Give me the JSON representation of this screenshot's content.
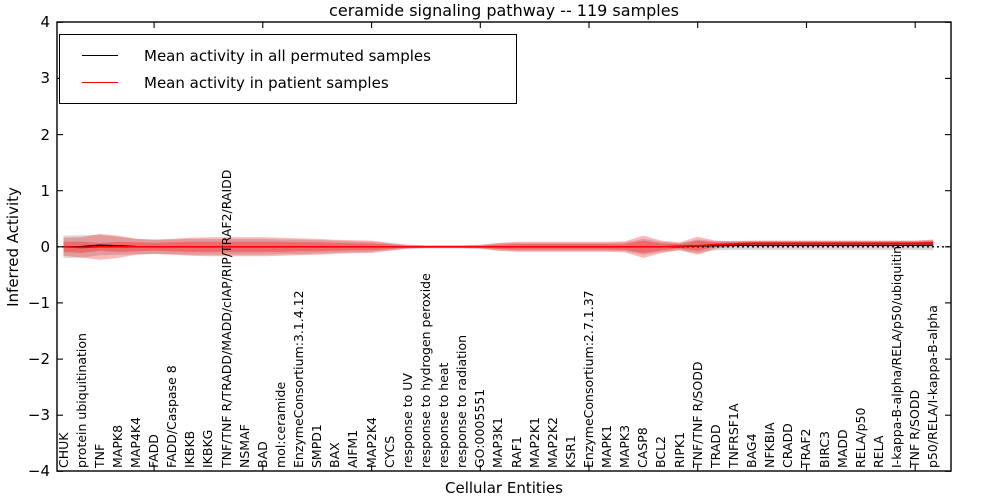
{
  "title": "ceramide signaling pathway -- 119 samples",
  "axes": {
    "ylabel": "Inferred Activity",
    "xlabel": "Cellular Entities",
    "yticks": [
      {
        "v": 4,
        "label": "4"
      },
      {
        "v": 3,
        "label": "3"
      },
      {
        "v": 2,
        "label": "2"
      },
      {
        "v": 1,
        "label": "1"
      },
      {
        "v": 0,
        "label": "0"
      },
      {
        "v": -1,
        "label": "−1"
      },
      {
        "v": -2,
        "label": "−2"
      },
      {
        "v": -3,
        "label": "−3"
      },
      {
        "v": -4,
        "label": "−4"
      }
    ]
  },
  "legend": {
    "items": [
      {
        "label": "Mean activity in all permuted samples",
        "color": "#000000"
      },
      {
        "label": "Mean activity in patient samples",
        "color": "#ff0000"
      }
    ]
  },
  "chart_data": {
    "type": "line",
    "title": "ceramide signaling pathway -- 119 samples",
    "xlabel": "Cellular Entities",
    "ylabel": "Inferred Activity",
    "ylim": [
      -4,
      4
    ],
    "grid": false,
    "legend_position": "upper left",
    "zero_line": true,
    "x_tick_indices": [
      5,
      11,
      17,
      23,
      29,
      35,
      41,
      47
    ],
    "categories": [
      "CHUK",
      "protein ubiquitination",
      "TNF",
      "MAPK8",
      "MAP4K4",
      "FADD",
      "FADD/Caspase 8",
      "IKBKB",
      "IKBKG",
      "TNF/TNF R/TRADD/MADD/cIAP/RIP/TRAF2/RAIDD",
      "NSMAF",
      "BAD",
      "mol:ceramide",
      "EnzymeConsortium:3.1.4.12",
      "SMPD1",
      "BAX",
      "AIFM1",
      "MAP2K4",
      "CYCS",
      "response to UV",
      "response to hydrogen peroxide",
      "response to heat",
      "response to radiation",
      "GO:0005551",
      "MAP3K1",
      "RAF1",
      "MAP2K1",
      "MAP2K2",
      "KSR1",
      "EnzymeConsortium:2.7.1.37",
      "MAPK1",
      "MAPK3",
      "CASP8",
      "BCL2",
      "RIPK1",
      "TNF/TNF R/SODD",
      "TRADD",
      "TNFRSF1A",
      "BAG4",
      "NFKBIA",
      "CRADD",
      "TRAF2",
      "BIRC3",
      "MADD",
      "RELA/p50",
      "RELA",
      "I-kappa-B-alpha/RELA/p50/ubiquitin",
      "TNF R/SODD",
      "p50/RELA/I-kappa-B-alpha"
    ],
    "series": [
      {
        "name": "Mean activity in all permuted samples",
        "color": "#000000",
        "values": [
          0,
          0.005,
          0.03,
          0.02,
          0.005,
          0,
          0,
          0,
          0,
          0,
          0,
          0,
          0,
          0,
          0,
          0,
          0,
          0,
          0,
          0,
          0,
          0,
          0,
          0,
          0,
          0,
          0,
          0,
          0,
          0,
          0,
          0,
          0,
          0,
          0,
          0.01,
          0.02,
          0.025,
          0.025,
          0.025,
          0.025,
          0.025,
          0.025,
          0.025,
          0.025,
          0.025,
          0.025,
          0.025,
          0.03
        ]
      },
      {
        "name": "Mean activity in patient samples",
        "color": "#ff0000",
        "values": [
          0,
          -0.01,
          0,
          0,
          0,
          0,
          0,
          0,
          0,
          0,
          0,
          0,
          0,
          0,
          0,
          0,
          0,
          0,
          0,
          0,
          0,
          0,
          0,
          0,
          0,
          0,
          0,
          0,
          0,
          0,
          0,
          0,
          0,
          0,
          0.01,
          0.02,
          0.04,
          0.05,
          0.06,
          0.06,
          0.06,
          0.06,
          0.06,
          0.06,
          0.06,
          0.06,
          0.06,
          0.06,
          0.07
        ]
      }
    ],
    "bands": [
      {
        "name": "permuted-std-band",
        "color": "#b0b0b0",
        "alpha": 0.5,
        "center_series": 0,
        "halfwidths": [
          0.2,
          0.2,
          0.18,
          0.16,
          0.14,
          0.13,
          0.13,
          0.14,
          0.14,
          0.14,
          0.14,
          0.14,
          0.13,
          0.13,
          0.12,
          0.11,
          0.1,
          0.09,
          0.06,
          0.03,
          0.025,
          0.025,
          0.025,
          0.03,
          0.06,
          0.07,
          0.07,
          0.07,
          0.07,
          0.07,
          0.07,
          0.08,
          0.14,
          0.09,
          0.06,
          0.12,
          0.08,
          0.08,
          0.08,
          0.08,
          0.08,
          0.08,
          0.08,
          0.08,
          0.08,
          0.08,
          0.08,
          0.08,
          0.09
        ]
      },
      {
        "name": "patient-std-band-outer",
        "color": "#ff0000",
        "alpha": 0.28,
        "center_series": 1,
        "halfwidths": [
          0.16,
          0.18,
          0.23,
          0.2,
          0.14,
          0.125,
          0.14,
          0.16,
          0.17,
          0.17,
          0.17,
          0.17,
          0.16,
          0.15,
          0.14,
          0.125,
          0.115,
          0.11,
          0.07,
          0.035,
          0.027,
          0.027,
          0.027,
          0.035,
          0.07,
          0.09,
          0.09,
          0.09,
          0.09,
          0.09,
          0.09,
          0.1,
          0.2,
          0.11,
          0.07,
          0.16,
          0.07,
          0.05,
          0.05,
          0.05,
          0.05,
          0.05,
          0.05,
          0.05,
          0.05,
          0.05,
          0.05,
          0.05,
          0.06
        ]
      },
      {
        "name": "patient-std-band-inner",
        "color": "#ff0000",
        "alpha": 0.3,
        "center_series": 1,
        "halfwidths": [
          0.09,
          0.1,
          0.07,
          0.09,
          0.08,
          0.07,
          0.08,
          0.09,
          0.09,
          0.09,
          0.09,
          0.09,
          0.09,
          0.08,
          0.08,
          0.07,
          0.06,
          0.06,
          0.04,
          0.02,
          0.015,
          0.015,
          0.015,
          0.02,
          0.04,
          0.05,
          0.05,
          0.05,
          0.05,
          0.05,
          0.05,
          0.055,
          0.11,
          0.06,
          0.04,
          0.09,
          0.04,
          0.03,
          0.03,
          0.03,
          0.03,
          0.03,
          0.03,
          0.03,
          0.03,
          0.03,
          0.03,
          0.03,
          0.035
        ]
      }
    ]
  }
}
